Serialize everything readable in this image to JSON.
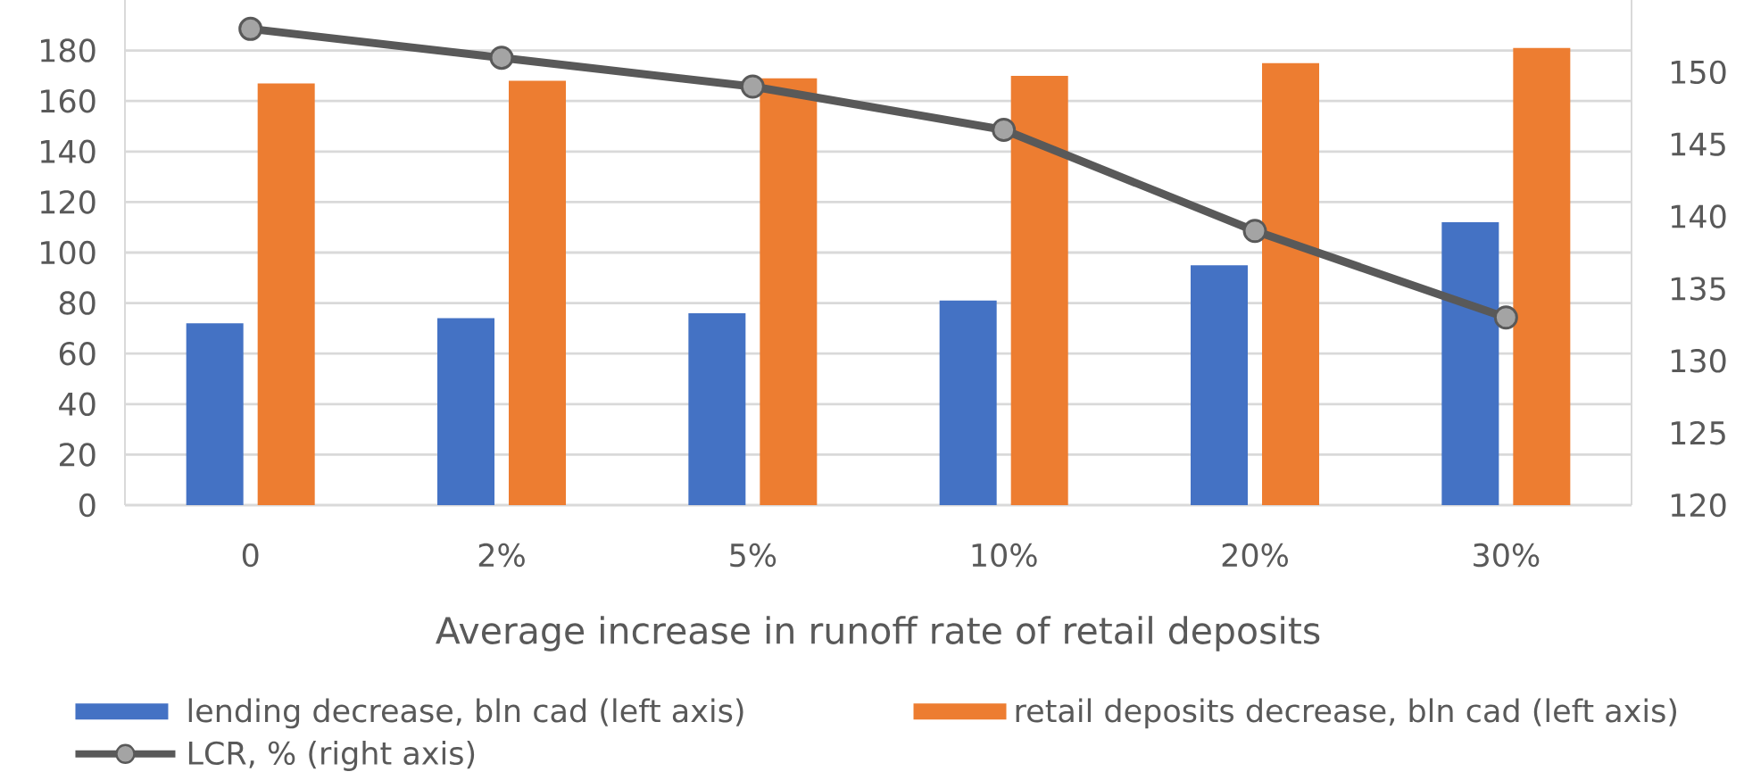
{
  "chart_data": {
    "type": "bar",
    "xlabel": "Average increase in runoff rate of retail deposits",
    "categories": [
      "0",
      "2%",
      "5%",
      "10%",
      "20%",
      "30%"
    ],
    "series": [
      {
        "name": "lending decrease, bln cad (left axis)",
        "color": "#4472c4",
        "values": [
          72,
          74,
          76,
          81,
          95,
          112
        ]
      },
      {
        "name": "retail deposits decrease, bln cad (left axis)",
        "color": "#ed7d31",
        "values": [
          167,
          168,
          169,
          170,
          175,
          181
        ]
      },
      {
        "name": "LCR, % (right axis)",
        "type": "line",
        "axis": "y2",
        "color": "#595959",
        "marker": "circle",
        "line_style": "solid",
        "values": [
          153,
          151,
          149,
          146,
          139,
          133
        ]
      }
    ],
    "ylim": [
      0,
      200
    ],
    "yticks": [
      0,
      20,
      40,
      60,
      80,
      100,
      120,
      140,
      160,
      180
    ],
    "y2lim": [
      120,
      155
    ],
    "y2ticks": [
      120,
      125,
      130,
      135,
      140,
      145,
      150
    ],
    "grid": "y",
    "legend": "bottom"
  }
}
